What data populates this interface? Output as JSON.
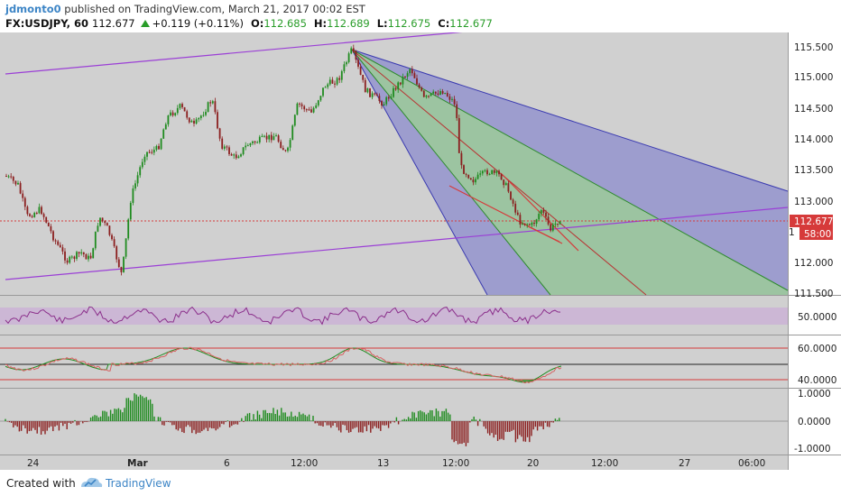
{
  "header": {
    "username": "jdmonto0",
    "published_text": " published on TradingView.com, March 21, 2017 00:02 EST",
    "symbol": "FX:USDJPY, 60",
    "last": "112.677",
    "change": "+0.119 (+0.11%)",
    "o_label": "O:",
    "o_value": "112.685",
    "h_label": "H:",
    "h_value": "112.689",
    "l_label": "L:",
    "l_value": "112.675",
    "c_label": "C:",
    "c_value": "112.677"
  },
  "price_axis": {
    "ticks": [
      "115.500",
      "115.000",
      "114.500",
      "114.000",
      "113.500",
      "113.000",
      "112.000",
      "111.500"
    ],
    "current_price": "112.677",
    "countdown": "58:00",
    "partial_label": "1"
  },
  "rsi_axis": {
    "ticks": [
      "50.0000"
    ]
  },
  "stoch_axis": {
    "ticks": [
      "60.0000",
      "40.0000"
    ]
  },
  "osc_axis": {
    "ticks": [
      "1.0000",
      "0.0000",
      "-1.0000"
    ]
  },
  "time_axis": {
    "labels": [
      "24",
      "Mar",
      "6",
      "12:00",
      "13",
      "12:00",
      "20",
      "12:00",
      "27",
      "06:00"
    ]
  },
  "colors": {
    "bg": "#d0d0d0",
    "up": "#1f8b1f",
    "down": "#8b1f1f",
    "fan_blue": "#8c8ccd",
    "fan_green": "#9cc99c",
    "channel": "#9b3fd6",
    "trend": "#d63a3a",
    "rsi": "#8b2f8b"
  },
  "chart_data": {
    "type": "candlestick",
    "series": [
      {
        "name": "FX:USDJPY, 60"
      }
    ],
    "y_range": [
      111.5,
      115.6
    ],
    "last_price": 112.677
  },
  "footer": {
    "created_with": "Created with",
    "brand": "TradingView"
  }
}
